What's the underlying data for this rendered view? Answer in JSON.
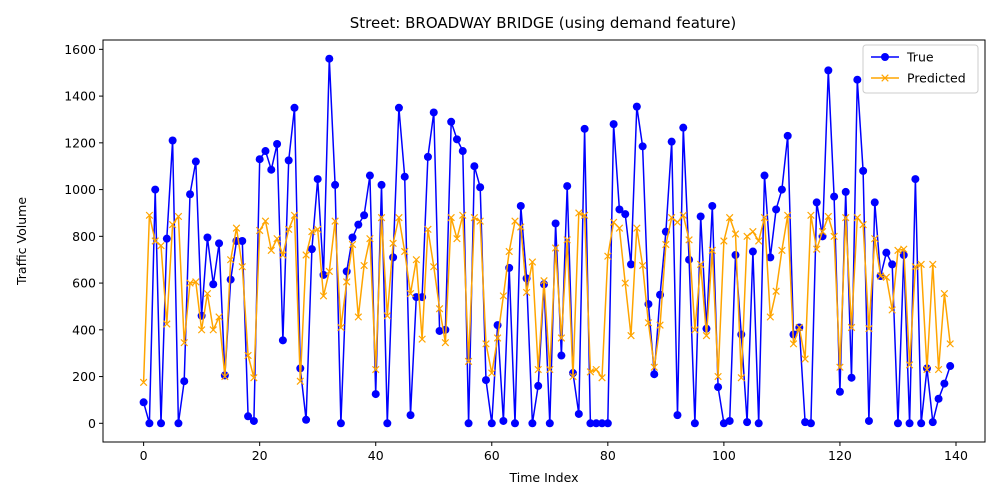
{
  "chart_data": {
    "type": "line",
    "title": "Street: BROADWAY BRIDGE (using demand feature)",
    "xlabel": "Time Index",
    "ylabel": "Traffic Volume",
    "xlim": [
      -7,
      145
    ],
    "ylim": [
      -80,
      1640
    ],
    "xticks": [
      0,
      20,
      40,
      60,
      80,
      100,
      120,
      140
    ],
    "yticks": [
      0,
      200,
      400,
      600,
      800,
      1000,
      1200,
      1400,
      1600
    ],
    "grid": false,
    "legend_position": "top-right",
    "x": [
      0,
      1,
      2,
      3,
      4,
      5,
      6,
      7,
      8,
      9,
      10,
      11,
      12,
      13,
      14,
      15,
      16,
      17,
      18,
      19,
      20,
      21,
      22,
      23,
      24,
      25,
      26,
      27,
      28,
      29,
      30,
      31,
      32,
      33,
      34,
      35,
      36,
      37,
      38,
      39,
      40,
      41,
      42,
      43,
      44,
      45,
      46,
      47,
      48,
      49,
      50,
      51,
      52,
      53,
      54,
      55,
      56,
      57,
      58,
      59,
      60,
      61,
      62,
      63,
      64,
      65,
      66,
      67,
      68,
      69,
      70,
      71,
      72,
      73,
      74,
      75,
      76,
      77,
      78,
      79,
      80,
      81,
      82,
      83,
      84,
      85,
      86,
      87,
      88,
      89,
      90,
      91,
      92,
      93,
      94,
      95,
      96,
      97,
      98,
      99,
      100,
      101,
      102,
      103,
      104,
      105,
      106,
      107,
      108,
      109,
      110,
      111,
      112,
      113,
      114,
      115,
      116,
      117,
      118,
      119,
      120,
      121,
      122,
      123,
      124,
      125,
      126,
      127,
      128,
      129,
      130,
      131,
      132,
      133,
      134,
      135,
      136,
      137,
      138,
      139
    ],
    "series": [
      {
        "name": "True",
        "color": "#0000ff",
        "marker": "circle",
        "values": [
          90,
          0,
          1000,
          0,
          790,
          1210,
          0,
          180,
          980,
          1120,
          460,
          795,
          595,
          770,
          205,
          615,
          780,
          780,
          30,
          10,
          1130,
          1165,
          1085,
          1195,
          355,
          1125,
          1350,
          235,
          15,
          745,
          1045,
          635,
          1560,
          1020,
          0,
          650,
          795,
          850,
          890,
          1060,
          125,
          1020,
          0,
          710,
          1350,
          1055,
          35,
          540,
          540,
          1140,
          1330,
          395,
          400,
          1290,
          1215,
          1165,
          0,
          1100,
          1010,
          185,
          0,
          420,
          10,
          665,
          0,
          930,
          620,
          0,
          160,
          595,
          0,
          855,
          290,
          1015,
          215,
          40,
          1260,
          0,
          0,
          0,
          0,
          1280,
          915,
          895,
          680,
          1355,
          1185,
          510,
          210,
          550,
          820,
          1205,
          35,
          1265,
          700,
          0,
          885,
          405,
          930,
          155,
          0,
          10,
          720,
          380,
          5,
          735,
          0,
          1060,
          710,
          915,
          1000,
          1230,
          380,
          410,
          5,
          0,
          945,
          800,
          1510,
          970,
          135,
          990,
          195,
          1470,
          1080,
          10,
          945,
          630,
          730,
          680,
          0,
          720,
          0,
          1045,
          0,
          235,
          5,
          105,
          170,
          245
        ]
      },
      {
        "name": "Predicted",
        "color": "#ffa500",
        "marker": "x",
        "values": [
          175,
          890,
          780,
          760,
          425,
          850,
          885,
          345,
          600,
          605,
          400,
          555,
          400,
          455,
          200,
          700,
          835,
          670,
          290,
          195,
          825,
          865,
          740,
          790,
          720,
          830,
          890,
          180,
          720,
          820,
          830,
          545,
          650,
          865,
          410,
          605,
          765,
          455,
          675,
          790,
          230,
          880,
          460,
          770,
          880,
          735,
          555,
          700,
          360,
          830,
          670,
          490,
          345,
          880,
          790,
          890,
          265,
          880,
          865,
          340,
          215,
          365,
          545,
          735,
          865,
          840,
          560,
          690,
          230,
          610,
          230,
          750,
          365,
          785,
          200,
          900,
          890,
          220,
          230,
          195,
          715,
          860,
          835,
          600,
          375,
          835,
          675,
          430,
          240,
          420,
          765,
          880,
          860,
          890,
          785,
          400,
          680,
          375,
          740,
          200,
          780,
          880,
          810,
          195,
          800,
          820,
          780,
          880,
          455,
          565,
          740,
          890,
          340,
          410,
          275,
          890,
          745,
          820,
          885,
          800,
          240,
          880,
          410,
          880,
          850,
          405,
          790,
          630,
          625,
          485,
          740,
          745,
          250,
          670,
          680,
          230,
          680,
          230,
          555,
          340
        ]
      }
    ]
  }
}
